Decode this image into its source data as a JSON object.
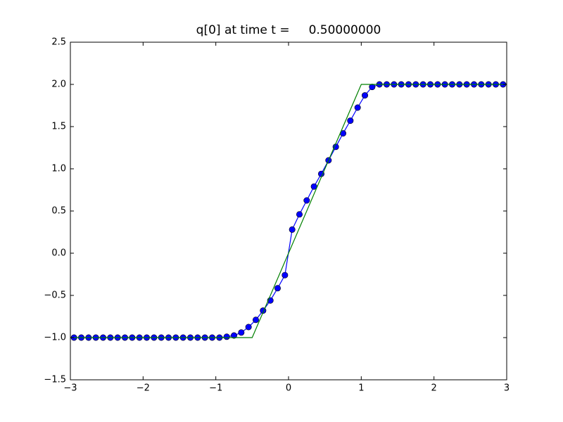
{
  "chart_data": {
    "type": "line",
    "title": "q[0] at time t =     0.50000000",
    "series": [
      {
        "color": "#0000ff",
        "marker": "circle",
        "x": [
          -2.95,
          -2.85,
          -2.75,
          -2.65,
          -2.55,
          -2.45,
          -2.35,
          -2.25,
          -2.15,
          -2.05,
          -1.95,
          -1.85,
          -1.75,
          -1.65,
          -1.55,
          -1.45,
          -1.35,
          -1.25,
          -1.15,
          -1.05,
          -0.95,
          -0.85,
          -0.75,
          -0.65,
          -0.55,
          -0.45,
          -0.35,
          -0.25,
          -0.15,
          -0.05,
          0.05,
          0.15,
          0.25,
          0.35,
          0.45,
          0.55,
          0.65,
          0.75,
          0.85,
          0.95,
          1.05,
          1.15,
          1.25,
          1.35,
          1.45,
          1.55,
          1.65,
          1.75,
          1.85,
          1.95,
          2.05,
          2.15,
          2.25,
          2.35,
          2.45,
          2.55,
          2.65,
          2.75,
          2.85,
          2.95
        ],
        "values": [
          -1,
          -1,
          -1,
          -1,
          -1,
          -1,
          -1,
          -1,
          -1,
          -1,
          -1,
          -1,
          -1,
          -1,
          -1,
          -1,
          -1,
          -1,
          -1,
          -1,
          -1,
          -0.99,
          -0.975,
          -0.94,
          -0.875,
          -0.79,
          -0.68,
          -0.56,
          -0.415,
          -0.26,
          0.28,
          0.46,
          0.625,
          0.79,
          0.94,
          1.1,
          1.26,
          1.42,
          1.57,
          1.725,
          1.87,
          1.97,
          2,
          2,
          2,
          2,
          2,
          2,
          2,
          2,
          2,
          2,
          2,
          2,
          2,
          2,
          2,
          2,
          2,
          2
        ]
      },
      {
        "color": "#008000",
        "marker": "none",
        "x": [
          -3,
          -0.5,
          1,
          3
        ],
        "values": [
          -1,
          -1,
          2,
          2
        ]
      }
    ],
    "xlim": [
      -3,
      3
    ],
    "xticks": [
      {
        "value": -3,
        "label": "−3"
      },
      {
        "value": -2,
        "label": "−2"
      },
      {
        "value": -1,
        "label": "−1"
      },
      0,
      1,
      2,
      3
    ],
    "ylim": [
      -1.5,
      2.5
    ],
    "yticks": [
      {
        "value": -1.5,
        "label": "−1.5"
      },
      {
        "value": -1.0,
        "label": "−1.0"
      },
      {
        "value": -0.5,
        "label": "−0.5"
      },
      {
        "value": 0,
        "label": "0.0"
      },
      0.5,
      {
        "value": 1,
        "label": "1.0"
      },
      1.5,
      {
        "value": 2,
        "label": "2.0"
      },
      2.5
    ],
    "grid": false
  }
}
